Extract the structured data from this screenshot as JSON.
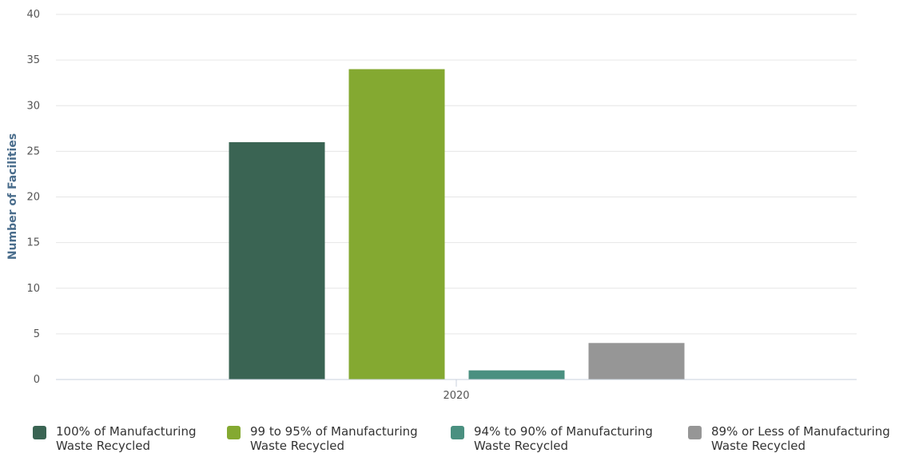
{
  "chart_data": {
    "type": "bar",
    "categories": [
      "2020"
    ],
    "series": [
      {
        "name": "100% of Manufacturing Waste Recycled",
        "color": "#3a6453",
        "values": [
          26
        ]
      },
      {
        "name": "99 to 95% of Manufacturing Waste Recycled",
        "color": "#84a931",
        "values": [
          34
        ]
      },
      {
        "name": "94% to 90% of Manufacturing Waste Recycled",
        "color": "#4a9080",
        "values": [
          1
        ]
      },
      {
        "name": "89% or Less of Manufacturing Waste Recycled",
        "color": "#969696",
        "values": [
          4
        ]
      }
    ],
    "title": "",
    "xlabel": "",
    "ylabel": "Number of Facilities",
    "ylim": [
      0,
      40
    ],
    "yticks": [
      0,
      5,
      10,
      15,
      20,
      25,
      30,
      35,
      40
    ],
    "grid": true,
    "legend_position": "bottom"
  },
  "legend": [
    {
      "line1": "100% of Manufacturing",
      "line2": "Waste Recycled"
    },
    {
      "line1": "99 to 95% of Manufacturing",
      "line2": "Waste Recycled"
    },
    {
      "line1": "94% to 90% of Manufacturing",
      "line2": "Waste Recycled"
    },
    {
      "line1": "89% or Less of Manufacturing",
      "line2": "Waste Recycled"
    }
  ]
}
